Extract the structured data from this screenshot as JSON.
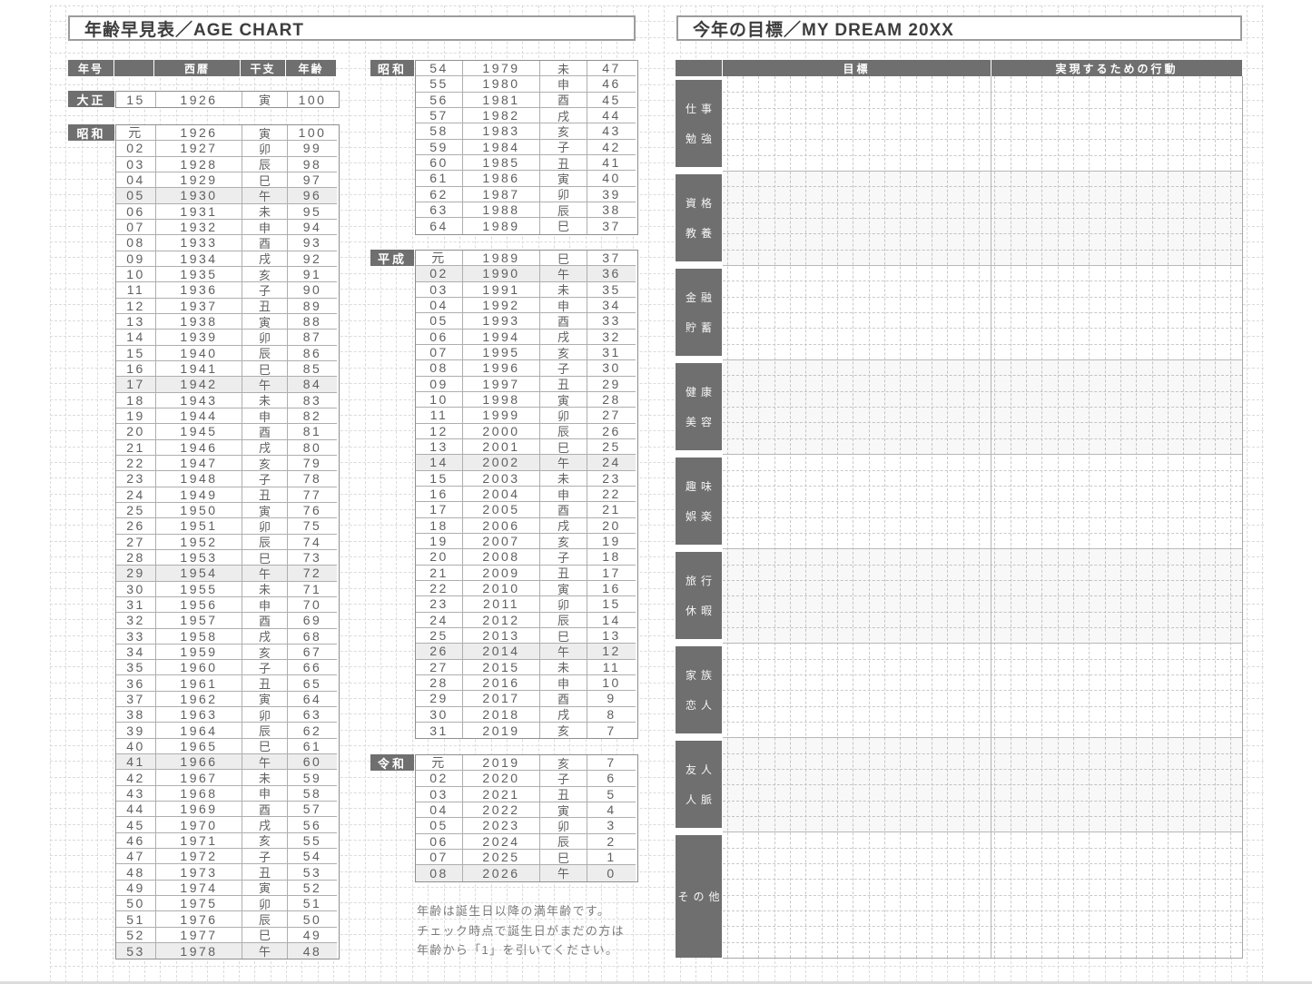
{
  "page": {
    "left_title": "年齢早見表／AGE CHART",
    "right_title": "今年の目標／MY DREAM 20XX"
  },
  "age_chart": {
    "headers": {
      "era": "年号",
      "blank": "",
      "year": "西暦",
      "zodiac": "干支",
      "age": "年齢"
    },
    "highlight_zodiac": "午",
    "note_lines": [
      "年齢は誕生日以降の満年齢です。",
      "チェック時点で誕生日がまだの方は",
      "年齢から「1」を引いてください。"
    ],
    "blocks": [
      {
        "era": "大正",
        "rows": [
          [
            "15",
            "1926",
            "寅",
            "100"
          ]
        ]
      },
      {
        "era": "昭和",
        "rows": [
          [
            "元",
            "1926",
            "寅",
            "100"
          ],
          [
            "02",
            "1927",
            "卯",
            "99"
          ],
          [
            "03",
            "1928",
            "辰",
            "98"
          ],
          [
            "04",
            "1929",
            "巳",
            "97"
          ],
          [
            "05",
            "1930",
            "午",
            "96"
          ],
          [
            "06",
            "1931",
            "未",
            "95"
          ],
          [
            "07",
            "1932",
            "申",
            "94"
          ],
          [
            "08",
            "1933",
            "酉",
            "93"
          ],
          [
            "09",
            "1934",
            "戌",
            "92"
          ],
          [
            "10",
            "1935",
            "亥",
            "91"
          ],
          [
            "11",
            "1936",
            "子",
            "90"
          ],
          [
            "12",
            "1937",
            "丑",
            "89"
          ],
          [
            "13",
            "1938",
            "寅",
            "88"
          ],
          [
            "14",
            "1939",
            "卯",
            "87"
          ],
          [
            "15",
            "1940",
            "辰",
            "86"
          ],
          [
            "16",
            "1941",
            "巳",
            "85"
          ],
          [
            "17",
            "1942",
            "午",
            "84"
          ],
          [
            "18",
            "1943",
            "未",
            "83"
          ],
          [
            "19",
            "1944",
            "申",
            "82"
          ],
          [
            "20",
            "1945",
            "酉",
            "81"
          ],
          [
            "21",
            "1946",
            "戌",
            "80"
          ],
          [
            "22",
            "1947",
            "亥",
            "79"
          ],
          [
            "23",
            "1948",
            "子",
            "78"
          ],
          [
            "24",
            "1949",
            "丑",
            "77"
          ],
          [
            "25",
            "1950",
            "寅",
            "76"
          ],
          [
            "26",
            "1951",
            "卯",
            "75"
          ],
          [
            "27",
            "1952",
            "辰",
            "74"
          ],
          [
            "28",
            "1953",
            "巳",
            "73"
          ],
          [
            "29",
            "1954",
            "午",
            "72"
          ],
          [
            "30",
            "1955",
            "未",
            "71"
          ],
          [
            "31",
            "1956",
            "申",
            "70"
          ],
          [
            "32",
            "1957",
            "酉",
            "69"
          ],
          [
            "33",
            "1958",
            "戌",
            "68"
          ],
          [
            "34",
            "1959",
            "亥",
            "67"
          ],
          [
            "35",
            "1960",
            "子",
            "66"
          ],
          [
            "36",
            "1961",
            "丑",
            "65"
          ],
          [
            "37",
            "1962",
            "寅",
            "64"
          ],
          [
            "38",
            "1963",
            "卯",
            "63"
          ],
          [
            "39",
            "1964",
            "辰",
            "62"
          ],
          [
            "40",
            "1965",
            "巳",
            "61"
          ],
          [
            "41",
            "1966",
            "午",
            "60"
          ],
          [
            "42",
            "1967",
            "未",
            "59"
          ],
          [
            "43",
            "1968",
            "申",
            "58"
          ],
          [
            "44",
            "1969",
            "酉",
            "57"
          ],
          [
            "45",
            "1970",
            "戌",
            "56"
          ],
          [
            "46",
            "1971",
            "亥",
            "55"
          ],
          [
            "47",
            "1972",
            "子",
            "54"
          ],
          [
            "48",
            "1973",
            "丑",
            "53"
          ],
          [
            "49",
            "1974",
            "寅",
            "52"
          ],
          [
            "50",
            "1975",
            "卯",
            "51"
          ],
          [
            "51",
            "1976",
            "辰",
            "50"
          ],
          [
            "52",
            "1977",
            "巳",
            "49"
          ],
          [
            "53",
            "1978",
            "午",
            "48"
          ]
        ]
      },
      {
        "era": "昭和",
        "rows": [
          [
            "54",
            "1979",
            "未",
            "47"
          ],
          [
            "55",
            "1980",
            "申",
            "46"
          ],
          [
            "56",
            "1981",
            "酉",
            "45"
          ],
          [
            "57",
            "1982",
            "戌",
            "44"
          ],
          [
            "58",
            "1983",
            "亥",
            "43"
          ],
          [
            "59",
            "1984",
            "子",
            "42"
          ],
          [
            "60",
            "1985",
            "丑",
            "41"
          ],
          [
            "61",
            "1986",
            "寅",
            "40"
          ],
          [
            "62",
            "1987",
            "卯",
            "39"
          ],
          [
            "63",
            "1988",
            "辰",
            "38"
          ],
          [
            "64",
            "1989",
            "巳",
            "37"
          ]
        ]
      },
      {
        "era": "平成",
        "rows": [
          [
            "元",
            "1989",
            "巳",
            "37"
          ],
          [
            "02",
            "1990",
            "午",
            "36"
          ],
          [
            "03",
            "1991",
            "未",
            "35"
          ],
          [
            "04",
            "1992",
            "申",
            "34"
          ],
          [
            "05",
            "1993",
            "酉",
            "33"
          ],
          [
            "06",
            "1994",
            "戌",
            "32"
          ],
          [
            "07",
            "1995",
            "亥",
            "31"
          ],
          [
            "08",
            "1996",
            "子",
            "30"
          ],
          [
            "09",
            "1997",
            "丑",
            "29"
          ],
          [
            "10",
            "1998",
            "寅",
            "28"
          ],
          [
            "11",
            "1999",
            "卯",
            "27"
          ],
          [
            "12",
            "2000",
            "辰",
            "26"
          ],
          [
            "13",
            "2001",
            "巳",
            "25"
          ],
          [
            "14",
            "2002",
            "午",
            "24"
          ],
          [
            "15",
            "2003",
            "未",
            "23"
          ],
          [
            "16",
            "2004",
            "申",
            "22"
          ],
          [
            "17",
            "2005",
            "酉",
            "21"
          ],
          [
            "18",
            "2006",
            "戌",
            "20"
          ],
          [
            "19",
            "2007",
            "亥",
            "19"
          ],
          [
            "20",
            "2008",
            "子",
            "18"
          ],
          [
            "21",
            "2009",
            "丑",
            "17"
          ],
          [
            "22",
            "2010",
            "寅",
            "16"
          ],
          [
            "23",
            "2011",
            "卯",
            "15"
          ],
          [
            "24",
            "2012",
            "辰",
            "14"
          ],
          [
            "25",
            "2013",
            "巳",
            "13"
          ],
          [
            "26",
            "2014",
            "午",
            "12"
          ],
          [
            "27",
            "2015",
            "未",
            "11"
          ],
          [
            "28",
            "2016",
            "申",
            "10"
          ],
          [
            "29",
            "2017",
            "酉",
            "9"
          ],
          [
            "30",
            "2018",
            "戌",
            "8"
          ],
          [
            "31",
            "2019",
            "亥",
            "7"
          ]
        ]
      },
      {
        "era": "令和",
        "rows": [
          [
            "元",
            "2019",
            "亥",
            "7"
          ],
          [
            "02",
            "2020",
            "子",
            "6"
          ],
          [
            "03",
            "2021",
            "丑",
            "5"
          ],
          [
            "04",
            "2022",
            "寅",
            "4"
          ],
          [
            "05",
            "2023",
            "卯",
            "3"
          ],
          [
            "06",
            "2024",
            "辰",
            "2"
          ],
          [
            "07",
            "2025",
            "巳",
            "1"
          ],
          [
            "08",
            "2026",
            "午",
            "0"
          ]
        ]
      }
    ]
  },
  "dream": {
    "col_goal": "目標",
    "col_action": "実現するための行動",
    "categories": [
      {
        "line1": "仕事",
        "line2": "勉強"
      },
      {
        "line1": "資格",
        "line2": "教養"
      },
      {
        "line1": "金融",
        "line2": "貯蓄"
      },
      {
        "line1": "健康",
        "line2": "美容"
      },
      {
        "line1": "趣味",
        "line2": "娯楽"
      },
      {
        "line1": "旅行",
        "line2": "休暇"
      },
      {
        "line1": "家族",
        "line2": "恋人"
      },
      {
        "line1": "友人",
        "line2": "人脈"
      },
      {
        "line1": "その他",
        "line2": ""
      }
    ]
  },
  "colors": {
    "dark": "#6f6f6f",
    "highlight_row": "#ededed",
    "grid_line": "#dbdbdb"
  }
}
